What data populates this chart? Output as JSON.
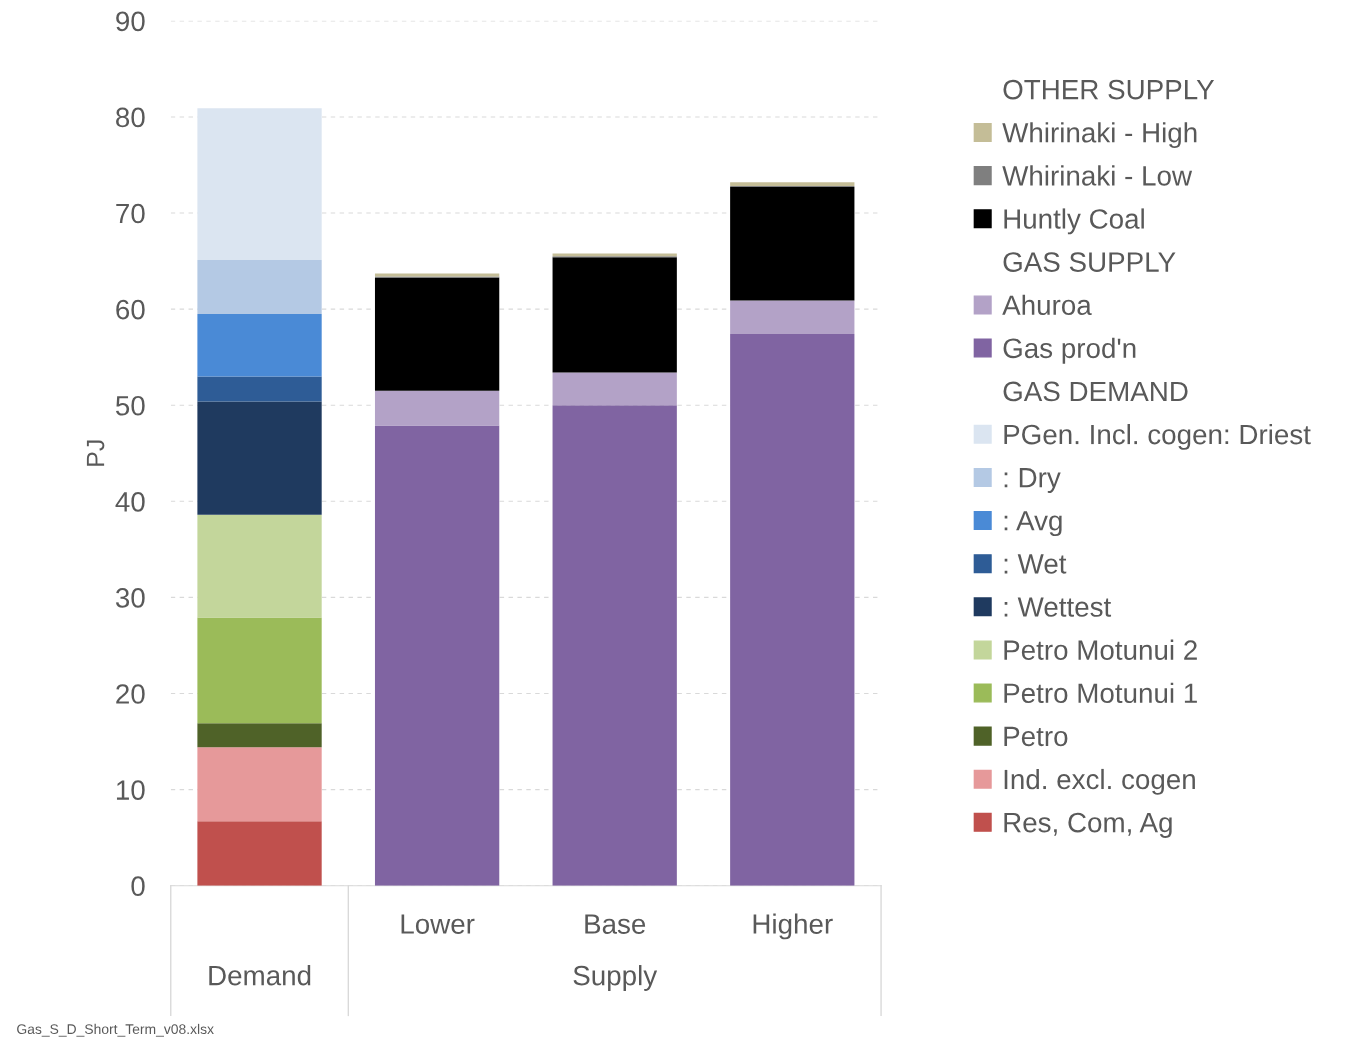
{
  "chart_data": {
    "type": "bar",
    "stacked": true,
    "ylabel": "PJ",
    "categories": [
      null,
      "Lower",
      "Base",
      "Higher"
    ],
    "ylim": [
      0,
      90
    ],
    "yticks": [
      0,
      10,
      20,
      30,
      40,
      50,
      60,
      70,
      80,
      90
    ],
    "grid": "y",
    "legend": "right",
    "annotations": [
      "OTHER SUPPLY",
      "GAS SUPPLY",
      "GAS DEMAND",
      "Demand",
      "Supply",
      "Gas_S_D_Short_Term_v08.xlsx"
    ],
    "series": [
      {
        "name": "Res, Com, Ag",
        "color": "#c0504d",
        "values": [
          6.7,
          null,
          null,
          null
        ]
      },
      {
        "name": "Ind. excl. cogen",
        "color": "#e6999a",
        "values": [
          7.7,
          null,
          null,
          null
        ]
      },
      {
        "name": "Petro",
        "color": "#4f6228",
        "values": [
          2.5,
          null,
          null,
          null
        ]
      },
      {
        "name": "Petro Motunui 1",
        "color": "#9bbb59",
        "values": [
          11.0,
          null,
          null,
          null
        ]
      },
      {
        "name": "Petro Motunui 2",
        "color": "#c3d69b",
        "values": [
          10.7,
          null,
          null,
          null
        ]
      },
      {
        "name": ": Wettest",
        "color": "#1f3a5f",
        "values": [
          11.8,
          null,
          null,
          null
        ]
      },
      {
        "name": ": Wet",
        "color": "#2e5c96",
        "values": [
          2.6,
          null,
          null,
          null
        ]
      },
      {
        "name": ": Avg",
        "color": "#4a8ad6",
        "values": [
          6.5,
          null,
          null,
          null
        ]
      },
      {
        "name": ": Dry",
        "color": "#b4c9e4",
        "values": [
          5.6,
          null,
          null,
          null
        ]
      },
      {
        "name": "PGen. Incl. cogen: Driest",
        "color": "#dbe5f1",
        "values": [
          15.8,
          null,
          null,
          null
        ]
      },
      {
        "name": "Gas prod'n",
        "color": "#8064a2",
        "values": [
          null,
          47.9,
          50.0,
          57.4
        ]
      },
      {
        "name": "Ahuroa",
        "color": "#b3a2c7",
        "values": [
          null,
          3.6,
          3.4,
          3.5
        ]
      },
      {
        "name": "Huntly Coal",
        "color": "#000000",
        "values": [
          null,
          11.8,
          12.0,
          11.8
        ]
      },
      {
        "name": "Whirinaki - Low",
        "color": "#7f7f7f",
        "values": [
          null,
          0.1,
          0.1,
          0.1
        ]
      },
      {
        "name": "Whirinaki - High",
        "color": "#c4bd97",
        "values": [
          null,
          0.3,
          0.3,
          0.4
        ]
      }
    ]
  }
}
